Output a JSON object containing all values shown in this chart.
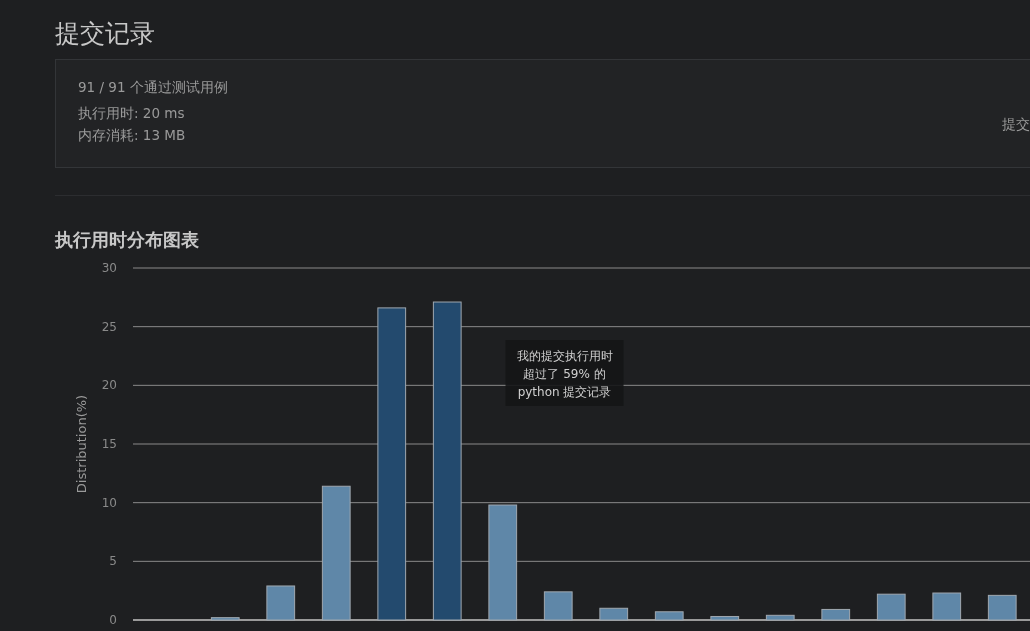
{
  "chart_data": [
    {
      "type": "other",
      "title": "提交记录",
      "annotations": [
        "91 / 91 个通过测试用例",
        "执行用时: 20 ms",
        "内存消耗: 13 MB",
        "提交"
      ]
    },
    {
      "type": "bar",
      "title": "执行用时分布图表",
      "ylabel": "Distribution(%)",
      "ylim": [
        0,
        30
      ],
      "yticks": [
        0,
        5,
        10,
        15,
        20,
        25,
        30
      ],
      "grid": "y",
      "categories": [
        null,
        null,
        null,
        null,
        null,
        null,
        null,
        null,
        null,
        null,
        null,
        null,
        null,
        null,
        null,
        null
      ],
      "values": [
        0,
        0.2,
        2.9,
        11.4,
        26.6,
        27.1,
        9.8,
        2.4,
        1.0,
        0.7,
        0.3,
        0.4,
        0.9,
        2.2,
        2.3,
        2.1
      ],
      "colors": [
        "#5f87a8",
        "#5f87a8",
        "#5f87a8",
        "#5f87a8",
        "#234a6e",
        "#234a6e",
        "#5f87a8",
        "#5f87a8",
        "#5f87a8",
        "#5f87a8",
        "#5f87a8",
        "#5f87a8",
        "#5f87a8",
        "#5f87a8",
        "#5f87a8",
        "#5f87a8"
      ],
      "annotations": [
        "我的提交执行用时",
        "超过了 59% 的",
        "python 提交记录"
      ]
    }
  ]
}
